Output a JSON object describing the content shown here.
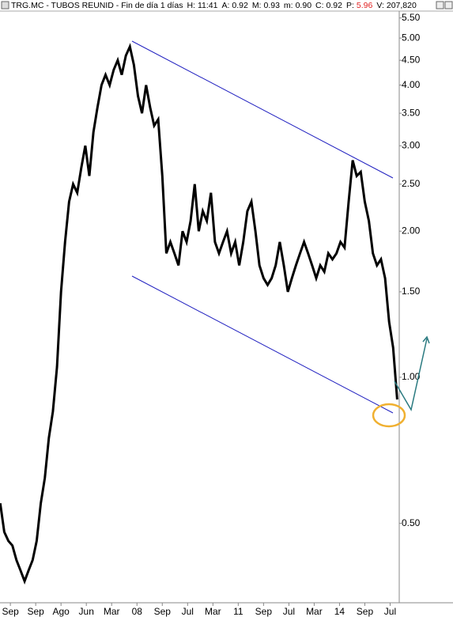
{
  "chart_data": {
    "type": "line",
    "title": "TRG.MC - TUBOS REUNID - Fin de día 1 días",
    "header": [
      {
        "label": "H:",
        "value": "11:41"
      },
      {
        "label": "A:",
        "value": "0.92"
      },
      {
        "label": "M:",
        "value": "0.93"
      },
      {
        "label": "m:",
        "value": "0.90"
      },
      {
        "label": "C:",
        "value": "0.92"
      },
      {
        "label": "P:",
        "value": "5.96",
        "color": "#e02020"
      },
      {
        "label": "V:",
        "value": "207,820"
      }
    ],
    "log_scale": true,
    "color": "#000000",
    "xlim": [
      -0.41,
      15.36
    ],
    "xticks": [
      {
        "value": 0,
        "label": "Sep"
      },
      {
        "value": 1,
        "label": "Sep"
      },
      {
        "value": 2,
        "label": "Ago"
      },
      {
        "value": 3,
        "label": "Jun"
      },
      {
        "value": 4,
        "label": "Mar"
      },
      {
        "value": 5,
        "label": "08"
      },
      {
        "value": 6,
        "label": "Sep"
      },
      {
        "value": 7,
        "label": "Jul"
      },
      {
        "value": 8,
        "label": "Mar"
      },
      {
        "value": 9,
        "label": "11"
      },
      {
        "value": 10,
        "label": "Sep"
      },
      {
        "value": 11,
        "label": "Jul"
      },
      {
        "value": 12,
        "label": "Mar"
      },
      {
        "value": 13,
        "label": "14"
      },
      {
        "value": 14,
        "label": "Sep"
      },
      {
        "value": 15,
        "label": "Jul"
      }
    ],
    "ylim": [
      0.343,
      5.99
    ],
    "yticks": [
      {
        "value": 0.5,
        "label": "0.50"
      },
      {
        "value": 1,
        "label": "1.00"
      },
      {
        "value": 1.5,
        "label": "1.50"
      },
      {
        "value": 2,
        "label": "2.00"
      },
      {
        "value": 2.5,
        "label": "2.50"
      },
      {
        "value": 3,
        "label": "3.00"
      },
      {
        "value": 3.5,
        "label": "3.50"
      },
      {
        "value": 4,
        "label": "4.00"
      },
      {
        "value": 4.5,
        "label": "4.50"
      },
      {
        "value": 5,
        "label": "5.00"
      },
      {
        "value": 5.5,
        "label": "5.50"
      }
    ],
    "x": [
      -0.4,
      -0.24,
      -0.08,
      0.08,
      0.24,
      0.4,
      0.56,
      0.72,
      0.88,
      1.04,
      1.2,
      1.36,
      1.52,
      1.68,
      1.84,
      2,
      2.16,
      2.32,
      2.48,
      2.64,
      2.8,
      2.96,
      3.12,
      3.28,
      3.44,
      3.6,
      3.76,
      3.92,
      4.08,
      4.24,
      4.4,
      4.56,
      4.72,
      4.88,
      5.04,
      5.2,
      5.36,
      5.52,
      5.68,
      5.84,
      6,
      6.16,
      6.32,
      6.48,
      6.64,
      6.8,
      6.96,
      7.12,
      7.28,
      7.44,
      7.6,
      7.76,
      7.92,
      8.08,
      8.24,
      8.4,
      8.56,
      8.72,
      8.88,
      9.04,
      9.2,
      9.36,
      9.52,
      9.68,
      9.84,
      10,
      10.16,
      10.32,
      10.48,
      10.64,
      10.8,
      10.96,
      11.12,
      11.28,
      11.44,
      11.6,
      11.76,
      11.92,
      12.08,
      12.24,
      12.4,
      12.56,
      12.72,
      12.88,
      13.04,
      13.2,
      13.36,
      13.52,
      13.68,
      13.84,
      14,
      14.16,
      14.32,
      14.48,
      14.64,
      14.8,
      14.96,
      15.12,
      15.28
    ],
    "values": [
      0.55,
      0.48,
      0.46,
      0.45,
      0.42,
      0.4,
      0.38,
      0.4,
      0.42,
      0.46,
      0.55,
      0.62,
      0.75,
      0.85,
      1.05,
      1.5,
      1.9,
      2.3,
      2.5,
      2.4,
      2.7,
      3.0,
      2.6,
      3.2,
      3.6,
      4.0,
      4.2,
      4.0,
      4.3,
      4.5,
      4.2,
      4.6,
      4.8,
      4.4,
      3.8,
      3.5,
      4.0,
      3.6,
      3.3,
      3.4,
      2.6,
      1.8,
      1.9,
      1.8,
      1.7,
      2.0,
      1.9,
      2.1,
      2.5,
      2.0,
      2.2,
      2.1,
      2.4,
      1.9,
      1.8,
      1.9,
      2.0,
      1.8,
      1.9,
      1.7,
      1.9,
      2.2,
      2.3,
      2.0,
      1.7,
      1.6,
      1.55,
      1.6,
      1.7,
      1.9,
      1.7,
      1.5,
      1.6,
      1.7,
      1.8,
      1.9,
      1.8,
      1.7,
      1.6,
      1.7,
      1.65,
      1.8,
      1.75,
      1.8,
      1.9,
      1.85,
      2.3,
      2.8,
      2.6,
      2.65,
      2.3,
      2.1,
      1.8,
      1.7,
      1.75,
      1.6,
      1.3,
      1.15,
      0.9
    ]
  }
}
